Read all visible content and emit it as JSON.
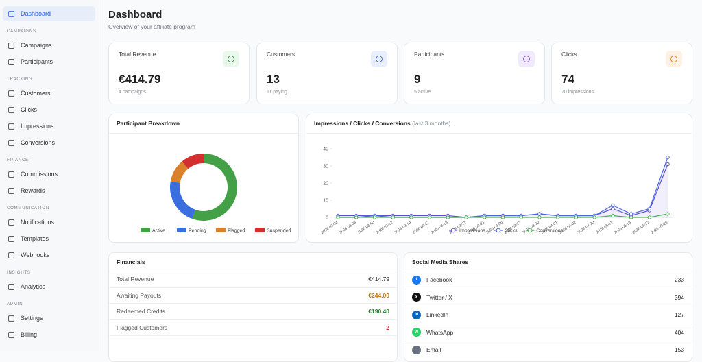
{
  "sidebar": {
    "active": "Dashboard",
    "sections": [
      {
        "title": "CAMPAIGNS",
        "items": [
          "Campaigns",
          "Participants"
        ]
      },
      {
        "title": "TRACKING",
        "items": [
          "Customers",
          "Clicks",
          "Impressions",
          "Conversions"
        ]
      },
      {
        "title": "FINANCE",
        "items": [
          "Commissions",
          "Rewards"
        ]
      },
      {
        "title": "COMMUNICATION",
        "items": [
          "Notifications",
          "Templates",
          "Webhooks"
        ]
      },
      {
        "title": "INSIGHTS",
        "items": [
          "Analytics"
        ]
      },
      {
        "title": "ADMIN",
        "items": [
          "Settings",
          "Billing"
        ]
      }
    ]
  },
  "header": {
    "title": "Dashboard",
    "subtitle": "Overview of your affiliate program"
  },
  "stats": [
    {
      "label": "Total Revenue",
      "value": "€414.79",
      "note": "4 campaigns",
      "color": "#3a9a4d",
      "bg": "#e9f7ec"
    },
    {
      "label": "Customers",
      "value": 13,
      "note": "11 paying",
      "color": "#4a6fd6",
      "bg": "#e8eefb"
    },
    {
      "label": "Participants",
      "value": 9,
      "note": "5 active",
      "color": "#8a5cd6",
      "bg": "#f0eafc"
    },
    {
      "label": "Clicks",
      "value": 74,
      "note": "70 impressions",
      "color": "#e08a2b",
      "bg": "#fdf1e4"
    }
  ],
  "chart_data": [
    {
      "type": "donut",
      "title": "Participant Breakdown",
      "categories": [
        "Active",
        "Pending",
        "Flagged",
        "Suspended"
      ],
      "values": [
        5,
        2,
        1,
        1
      ],
      "colors": [
        "#43a047",
        "#3b6fe0",
        "#d9822b",
        "#d32f2f"
      ]
    },
    {
      "type": "line",
      "title": "Impressions / Clicks / Conversions",
      "subtitle": "(last 3 months)",
      "x": [
        "2026-03-04",
        "2026-03-08",
        "2026-03-10",
        "2026-03-12",
        "2026-03-14",
        "2026-03-17",
        "2026-03-18",
        "2026-03-21",
        "2026-03-23",
        "2026-03-26",
        "2026-03-27",
        "2026-03-30",
        "2026-04-01",
        "2026-04-02",
        "2026-04-20",
        "2026-05-11",
        "2026-05-18",
        "2026-05-27",
        "2026-05-28"
      ],
      "series": [
        {
          "name": "Impressions",
          "color": "#5b4fd6",
          "values": [
            1,
            1,
            1,
            1,
            1,
            1,
            1,
            0,
            1,
            1,
            1,
            2,
            1,
            1,
            1,
            5,
            1,
            4,
            31
          ]
        },
        {
          "name": "Clicks",
          "color": "#4a67e0",
          "values": [
            0,
            0,
            1,
            0,
            0,
            0,
            0,
            0,
            1,
            1,
            1,
            2,
            1,
            1,
            1,
            7,
            2,
            5,
            35
          ]
        },
        {
          "name": "Conversions",
          "color": "#4caf50",
          "values": [
            0,
            0,
            0,
            0,
            0,
            0,
            0,
            0,
            0,
            0,
            0,
            0,
            0,
            0,
            0,
            1,
            0,
            0,
            2
          ]
        }
      ],
      "ylim": [
        0,
        40
      ],
      "yticks": [
        0,
        10,
        20,
        30,
        40
      ],
      "grid": false
    }
  ],
  "financials": {
    "title": "Financials",
    "rows": [
      {
        "label": "Total Revenue",
        "value": "€414.79",
        "color": "#222222"
      },
      {
        "label": "Awaiting Payouts",
        "value": "€244.00",
        "color": "#c27a1c"
      },
      {
        "label": "Redeemed Credits",
        "value": "€190.40",
        "color": "#2e7d32"
      },
      {
        "label": "Flagged Customers",
        "value": 2,
        "color": "#d32f2f"
      }
    ]
  },
  "social": {
    "title": "Social Media Shares",
    "rows": [
      {
        "icon": "f",
        "name": "Facebook",
        "value": 233,
        "color": "#1877f2"
      },
      {
        "icon": "X",
        "name": "Twitter / X",
        "value": 394,
        "color": "#111111"
      },
      {
        "icon": "in",
        "name": "LinkedIn",
        "value": 127,
        "color": "#0a66c2"
      },
      {
        "icon": "W",
        "name": "WhatsApp",
        "value": 404,
        "color": "#25d366"
      },
      {
        "name": "Email",
        "value": 153,
        "color": "#6b7280"
      }
    ]
  }
}
